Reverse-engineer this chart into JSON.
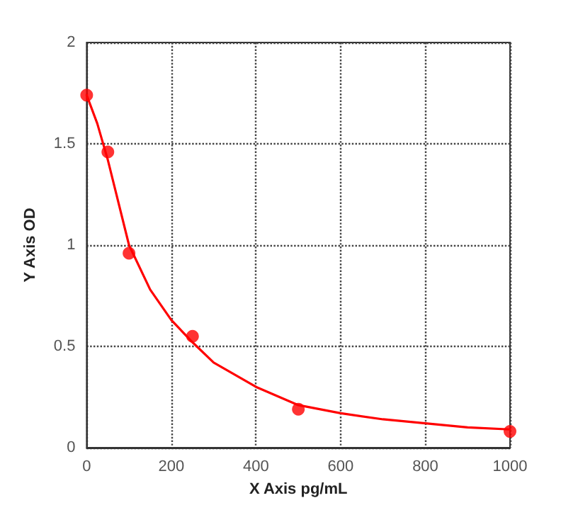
{
  "chart_data": {
    "type": "scatter",
    "xlabel": "X Axis pg/mL",
    "ylabel": "Y Axis OD",
    "xlim": [
      0,
      1000
    ],
    "ylim": [
      0,
      2
    ],
    "xticks": [
      0,
      200,
      400,
      600,
      800,
      1000
    ],
    "yticks": [
      0,
      0.5,
      1,
      1.5,
      2
    ],
    "grid": true,
    "marker": "circle",
    "series": [
      {
        "color": "#ff0000",
        "x": [
          0,
          50,
          100,
          250,
          500,
          1000
        ],
        "values": [
          1.74,
          1.46,
          0.96,
          0.55,
          0.19,
          0.08
        ]
      },
      {
        "type": "line",
        "color": "#ff0000",
        "line_style": "solid",
        "marker": "none",
        "x": [
          0,
          25,
          50,
          100,
          150,
          200,
          250,
          300,
          400,
          500,
          600,
          700,
          800,
          900,
          1000
        ],
        "values": [
          1.74,
          1.6,
          1.42,
          1.0,
          0.78,
          0.63,
          0.52,
          0.42,
          0.3,
          0.21,
          0.17,
          0.14,
          0.12,
          0.1,
          0.09
        ]
      }
    ]
  }
}
